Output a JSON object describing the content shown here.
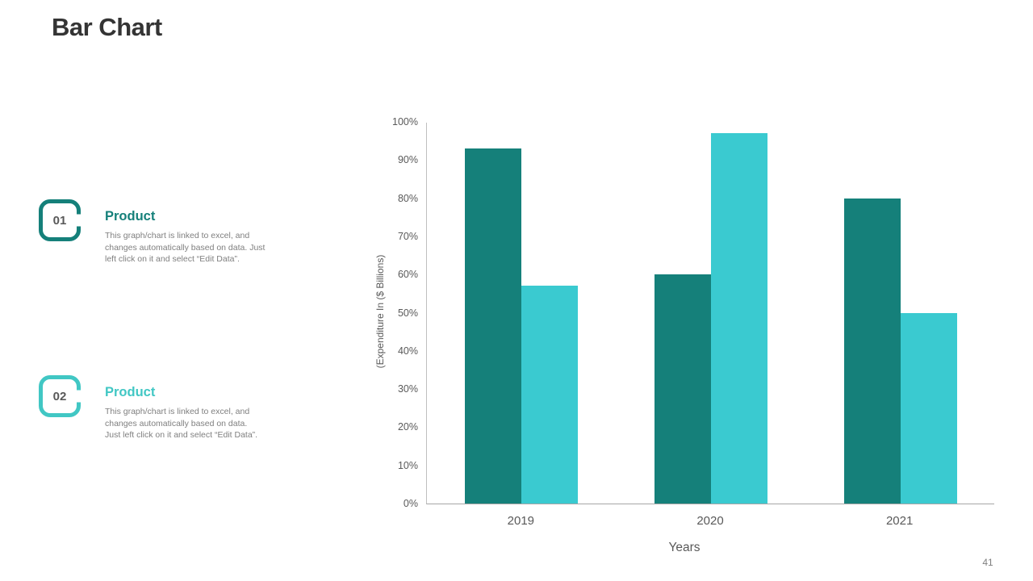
{
  "slide": {
    "title": "Bar Chart",
    "page_number": "41"
  },
  "items": [
    {
      "number": "01",
      "heading": "Product",
      "description": "This graph/chart is linked to excel, and changes automatically based on data. Just left click on it and select “Edit Data”.",
      "accent": "#15807A"
    },
    {
      "number": "02",
      "heading": "Product",
      "description": "This graph/chart is linked to excel, and changes automatically based on data. Just left click on it and select “Edit Data”.",
      "accent": "#41C7C4"
    }
  ],
  "chart_data": {
    "type": "bar",
    "categories": [
      "2019",
      "2020",
      "2021"
    ],
    "series": [
      {
        "color": "#15807A",
        "values": [
          93,
          60,
          80
        ]
      },
      {
        "color": "#3ACAD0",
        "values": [
          57,
          97,
          50
        ]
      }
    ],
    "xlabel": "Years",
    "ylabel": "(Expenditure In ($ Billions)",
    "ylim": [
      0,
      100
    ],
    "ytick_step": 10,
    "ytick_suffix": "%",
    "grid": false,
    "legend": "none",
    "axis_color": "#bfbfbf"
  }
}
